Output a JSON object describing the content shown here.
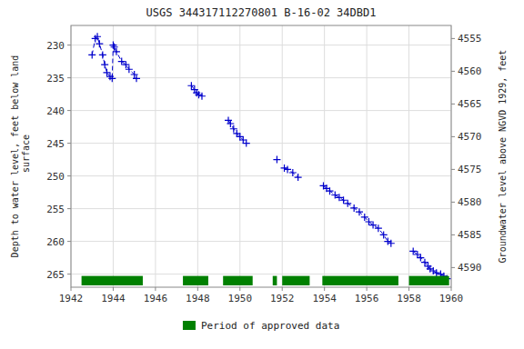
{
  "chart_data": {
    "type": "line",
    "title": "USGS 344317112270801 B-16-02 34DBD1",
    "ylabel": "Depth to water level, feet below land\n surface",
    "y2label": "Groundwater level above NGVD 1929, feet",
    "xlim": [
      1942,
      1960
    ],
    "xticks": [
      1942,
      1944,
      1946,
      1948,
      1950,
      1952,
      1954,
      1956,
      1958,
      1960
    ],
    "ylim": [
      227,
      267
    ],
    "yticks": [
      230,
      235,
      240,
      245,
      250,
      255,
      260,
      265
    ],
    "y2lim": [
      4553,
      4593
    ],
    "y2ticks": [
      4590,
      4585,
      4580,
      4575,
      4570,
      4565,
      4560,
      4555
    ],
    "grid": true,
    "series": [
      {
        "type": "line",
        "color": "#0000cc",
        "marker": "plus",
        "line_style": "dashed",
        "x": [
          1943.0,
          1943.15,
          1943.25,
          1943.35,
          1943.5,
          1943.6,
          1943.7,
          1943.85,
          1943.95,
          1944.0,
          1944.05,
          1944.15,
          1944.4,
          1944.6,
          1944.75,
          1945.0,
          1945.1
        ],
        "values": [
          231.5,
          229.0,
          228.7,
          229.8,
          231.5,
          233.0,
          234.2,
          234.8,
          235.1,
          230.0,
          230.3,
          231.0,
          232.5,
          233.0,
          233.7,
          234.5,
          235.1
        ]
      },
      {
        "type": "line",
        "color": "#0000cc",
        "marker": "plus",
        "line_style": "dashed",
        "x": [
          1947.7,
          1947.85,
          1947.95,
          1948.05,
          1948.2
        ],
        "values": [
          236.2,
          236.8,
          237.3,
          237.6,
          237.8
        ]
      },
      {
        "type": "line",
        "color": "#0000cc",
        "marker": "plus",
        "line_style": "dashed",
        "x": [
          1949.45,
          1949.55,
          1949.7,
          1949.85,
          1950.0,
          1950.15,
          1950.3
        ],
        "values": [
          241.5,
          242.0,
          242.8,
          243.5,
          244.0,
          244.5,
          245.0
        ]
      },
      {
        "type": "line",
        "color": "#0000cc",
        "marker": "plus",
        "line_style": "none",
        "x": [
          1951.75
        ],
        "values": [
          247.5
        ]
      },
      {
        "type": "line",
        "color": "#0000cc",
        "marker": "plus",
        "line_style": "dashed",
        "x": [
          1952.1,
          1952.25,
          1952.5,
          1952.75
        ],
        "values": [
          248.8,
          249.0,
          249.5,
          250.2
        ]
      },
      {
        "type": "line",
        "color": "#0000cc",
        "marker": "plus",
        "line_style": "dashed",
        "x": [
          1953.95,
          1954.1,
          1954.25,
          1954.5,
          1954.7,
          1954.9,
          1955.1,
          1955.4,
          1955.65,
          1955.9,
          1956.1,
          1956.3,
          1956.55,
          1956.8,
          1957.0,
          1957.15
        ],
        "values": [
          251.5,
          251.9,
          252.3,
          252.9,
          253.3,
          253.7,
          254.2,
          254.9,
          255.5,
          256.3,
          257.0,
          257.5,
          258.0,
          259.0,
          260.0,
          260.3
        ]
      },
      {
        "type": "line",
        "color": "#0000cc",
        "marker": "plus",
        "line_style": "dashed",
        "x": [
          1958.2,
          1958.4,
          1958.55,
          1958.75,
          1958.9,
          1959.0,
          1959.15,
          1959.3,
          1959.5,
          1959.65,
          1959.8
        ],
        "values": [
          261.5,
          262.0,
          262.5,
          263.2,
          263.8,
          264.2,
          264.5,
          264.8,
          265.0,
          265.3,
          265.7
        ]
      },
      {
        "type": "span",
        "name": "Period of approved data",
        "color": "#008000",
        "spans": [
          [
            1942.5,
            1945.4
          ],
          [
            1947.3,
            1948.5
          ],
          [
            1949.2,
            1950.6
          ],
          [
            1951.55,
            1951.75
          ],
          [
            1952.0,
            1953.3
          ],
          [
            1953.9,
            1957.5
          ],
          [
            1958.0,
            1959.9
          ]
        ]
      }
    ]
  }
}
